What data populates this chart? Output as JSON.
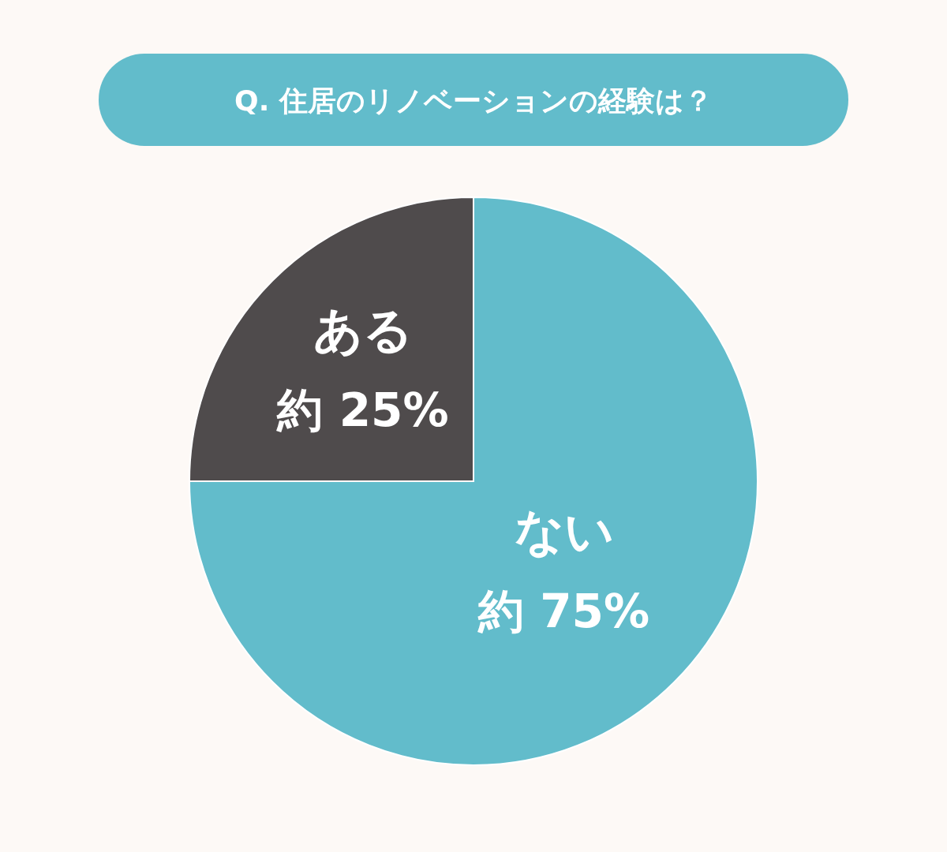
{
  "chart_data": {
    "type": "pie",
    "title": "Q. 住居のリノベーションの経験は？",
    "categories": [
      "ない",
      "ある"
    ],
    "values": [
      75,
      25
    ],
    "colors": [
      "#62bccb",
      "#4f4b4c"
    ],
    "value_labels": [
      "約 75%",
      "約 25%"
    ]
  }
}
